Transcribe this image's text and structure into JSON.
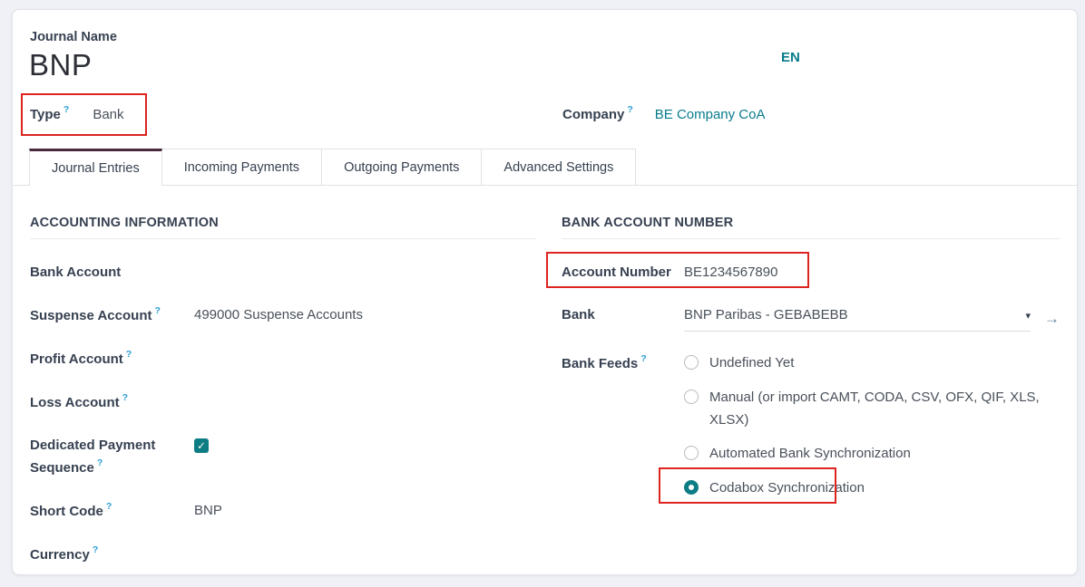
{
  "colors": {
    "highlight_red": "#dd241f",
    "link_teal": "#087b8c",
    "control_teal": "#0e7d83",
    "active_tab_accent": "#492a3e",
    "help_blue": "#2e9fd4"
  },
  "icons": {
    "caret_down": "▾",
    "arrow_right": "→",
    "check": "✓"
  },
  "header": {
    "journal_name_label": "Journal Name",
    "journal_name_value": "BNP",
    "language_badge": "EN",
    "type": {
      "label": "Type",
      "help": "?",
      "value": "Bank"
    },
    "company": {
      "label": "Company",
      "help": "?",
      "value": "BE Company CoA"
    }
  },
  "tabs": [
    {
      "label": "Journal Entries",
      "active": true
    },
    {
      "label": "Incoming Payments",
      "active": false
    },
    {
      "label": "Outgoing Payments",
      "active": false
    },
    {
      "label": "Advanced Settings",
      "active": false
    }
  ],
  "left_section": {
    "title": "ACCOUNTING INFORMATION",
    "fields": [
      {
        "label": "Bank Account",
        "help": "",
        "value": ""
      },
      {
        "label": "Suspense Account",
        "help": "?",
        "value": "499000 Suspense Accounts"
      },
      {
        "label": "Profit Account",
        "help": "?",
        "value": ""
      },
      {
        "label": "Loss Account",
        "help": "?",
        "value": ""
      },
      {
        "label": "Dedicated Payment Sequence",
        "help": "?",
        "value": "",
        "checked": true
      },
      {
        "label": "Short Code",
        "help": "?",
        "value": "BNP"
      },
      {
        "label": "Currency",
        "help": "?",
        "value": ""
      }
    ]
  },
  "right_section": {
    "title": "BANK ACCOUNT NUMBER",
    "account_number": {
      "label": "Account Number",
      "value": "BE1234567890"
    },
    "bank": {
      "label": "Bank",
      "value": "BNP Paribas - GEBABEBB"
    },
    "bank_feeds": {
      "label": "Bank Feeds",
      "help": "?",
      "options": [
        {
          "label": "Undefined Yet",
          "selected": false
        },
        {
          "label": "Manual (or import CAMT, CODA, CSV, OFX, QIF, XLS, XLSX)",
          "selected": false
        },
        {
          "label": "Automated Bank Synchronization",
          "selected": false
        },
        {
          "label": "Codabox Synchronization",
          "selected": true
        }
      ]
    }
  }
}
